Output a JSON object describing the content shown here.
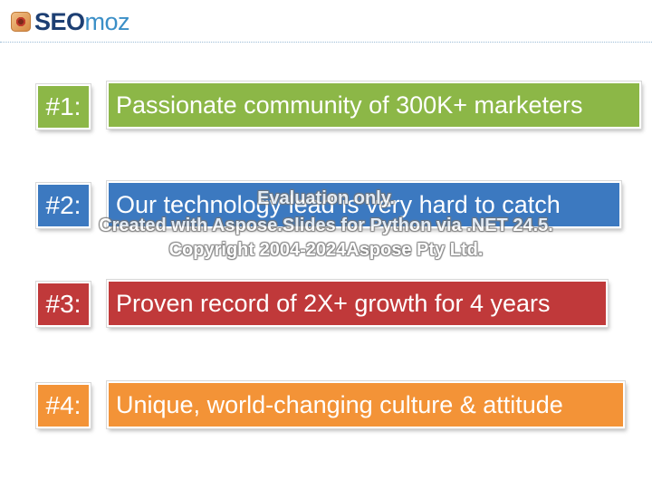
{
  "logo": {
    "seo": "SEO",
    "moz": "moz"
  },
  "items": [
    {
      "number": "#1:",
      "text": "Passionate community of 300K+ marketers",
      "color": "#8cb747"
    },
    {
      "number": "#2:",
      "text": "Our technology lead is very hard to catch",
      "color": "#3c79c0"
    },
    {
      "number": "#3:",
      "text": "Proven record of 2X+ growth for 4 years",
      "color": "#c0393a"
    },
    {
      "number": "#4:",
      "text": "Unique, world-changing culture & attitude",
      "color": "#f39337"
    }
  ],
  "watermark": {
    "line1": "Evaluation only.",
    "line2": "Created with Aspose.Slides for Python via .NET 24.5.",
    "line3": "Copyright 2004-2024Aspose Pty Ltd."
  }
}
